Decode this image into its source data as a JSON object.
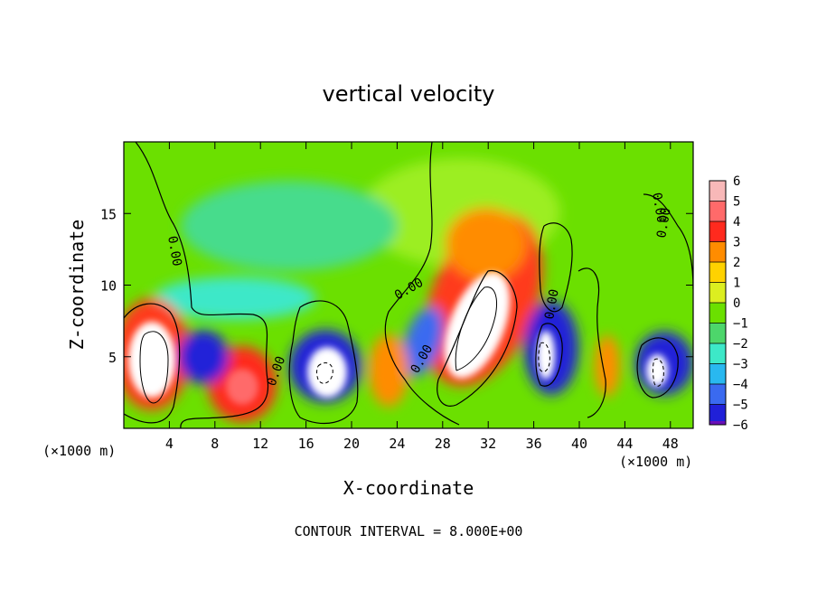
{
  "chart_data": {
    "type": "heatmap",
    "title": "vertical velocity",
    "xlabel": "X-coordinate",
    "ylabel": "Z-coordinate",
    "x_scale_label_left": "(×1000 m)",
    "x_scale_label_right": "(×1000 m)",
    "footer": "CONTOUR INTERVAL = 8.000E+00",
    "xlim": [
      0,
      50
    ],
    "ylim": [
      0,
      20
    ],
    "xticks": [
      4,
      8,
      12,
      16,
      20,
      24,
      28,
      32,
      36,
      40,
      44,
      48
    ],
    "yticks": [
      5,
      10,
      15
    ],
    "colorbar": {
      "levels": [
        6,
        5,
        4,
        3,
        2,
        1,
        0,
        -1,
        -2,
        -3,
        -4,
        -5,
        -6
      ],
      "colors": [
        "#f8b8b8",
        "#ff6a6a",
        "#ff2a1e",
        "#ff8c00",
        "#ffd200",
        "#dcee20",
        "#6be000",
        "#4dd66b",
        "#3de8c8",
        "#29b8f0",
        "#3a6af0",
        "#2020d8",
        "#6a10b8"
      ]
    },
    "contour_labels": [
      "0.00",
      "0.00",
      "0.00",
      "0.00",
      "0.00",
      "0.00",
      "0.00"
    ],
    "features": [
      {
        "x": 2.2,
        "z": 4.8,
        "value": 12
      },
      {
        "x": 18.0,
        "z": 4.0,
        "value": -12
      },
      {
        "x": 31.0,
        "z": 7.2,
        "value": 12
      },
      {
        "x": 36.8,
        "z": 5.2,
        "value": -10
      },
      {
        "x": 46.5,
        "z": 4.5,
        "value": -10
      },
      {
        "x": 10.5,
        "z": 3.2,
        "value": 5
      },
      {
        "x": 31.5,
        "z": 13.0,
        "value": 3
      },
      {
        "x": 6.0,
        "z": 4.5,
        "value": -4
      },
      {
        "x": 25.5,
        "z": 5.5,
        "value": -5
      },
      {
        "x": 13.0,
        "z": 7.5,
        "value": -2
      },
      {
        "x": 21.0,
        "z": 13.5,
        "value": -1.5
      },
      {
        "x": 42.5,
        "z": 4.0,
        "value": 4
      }
    ]
  }
}
